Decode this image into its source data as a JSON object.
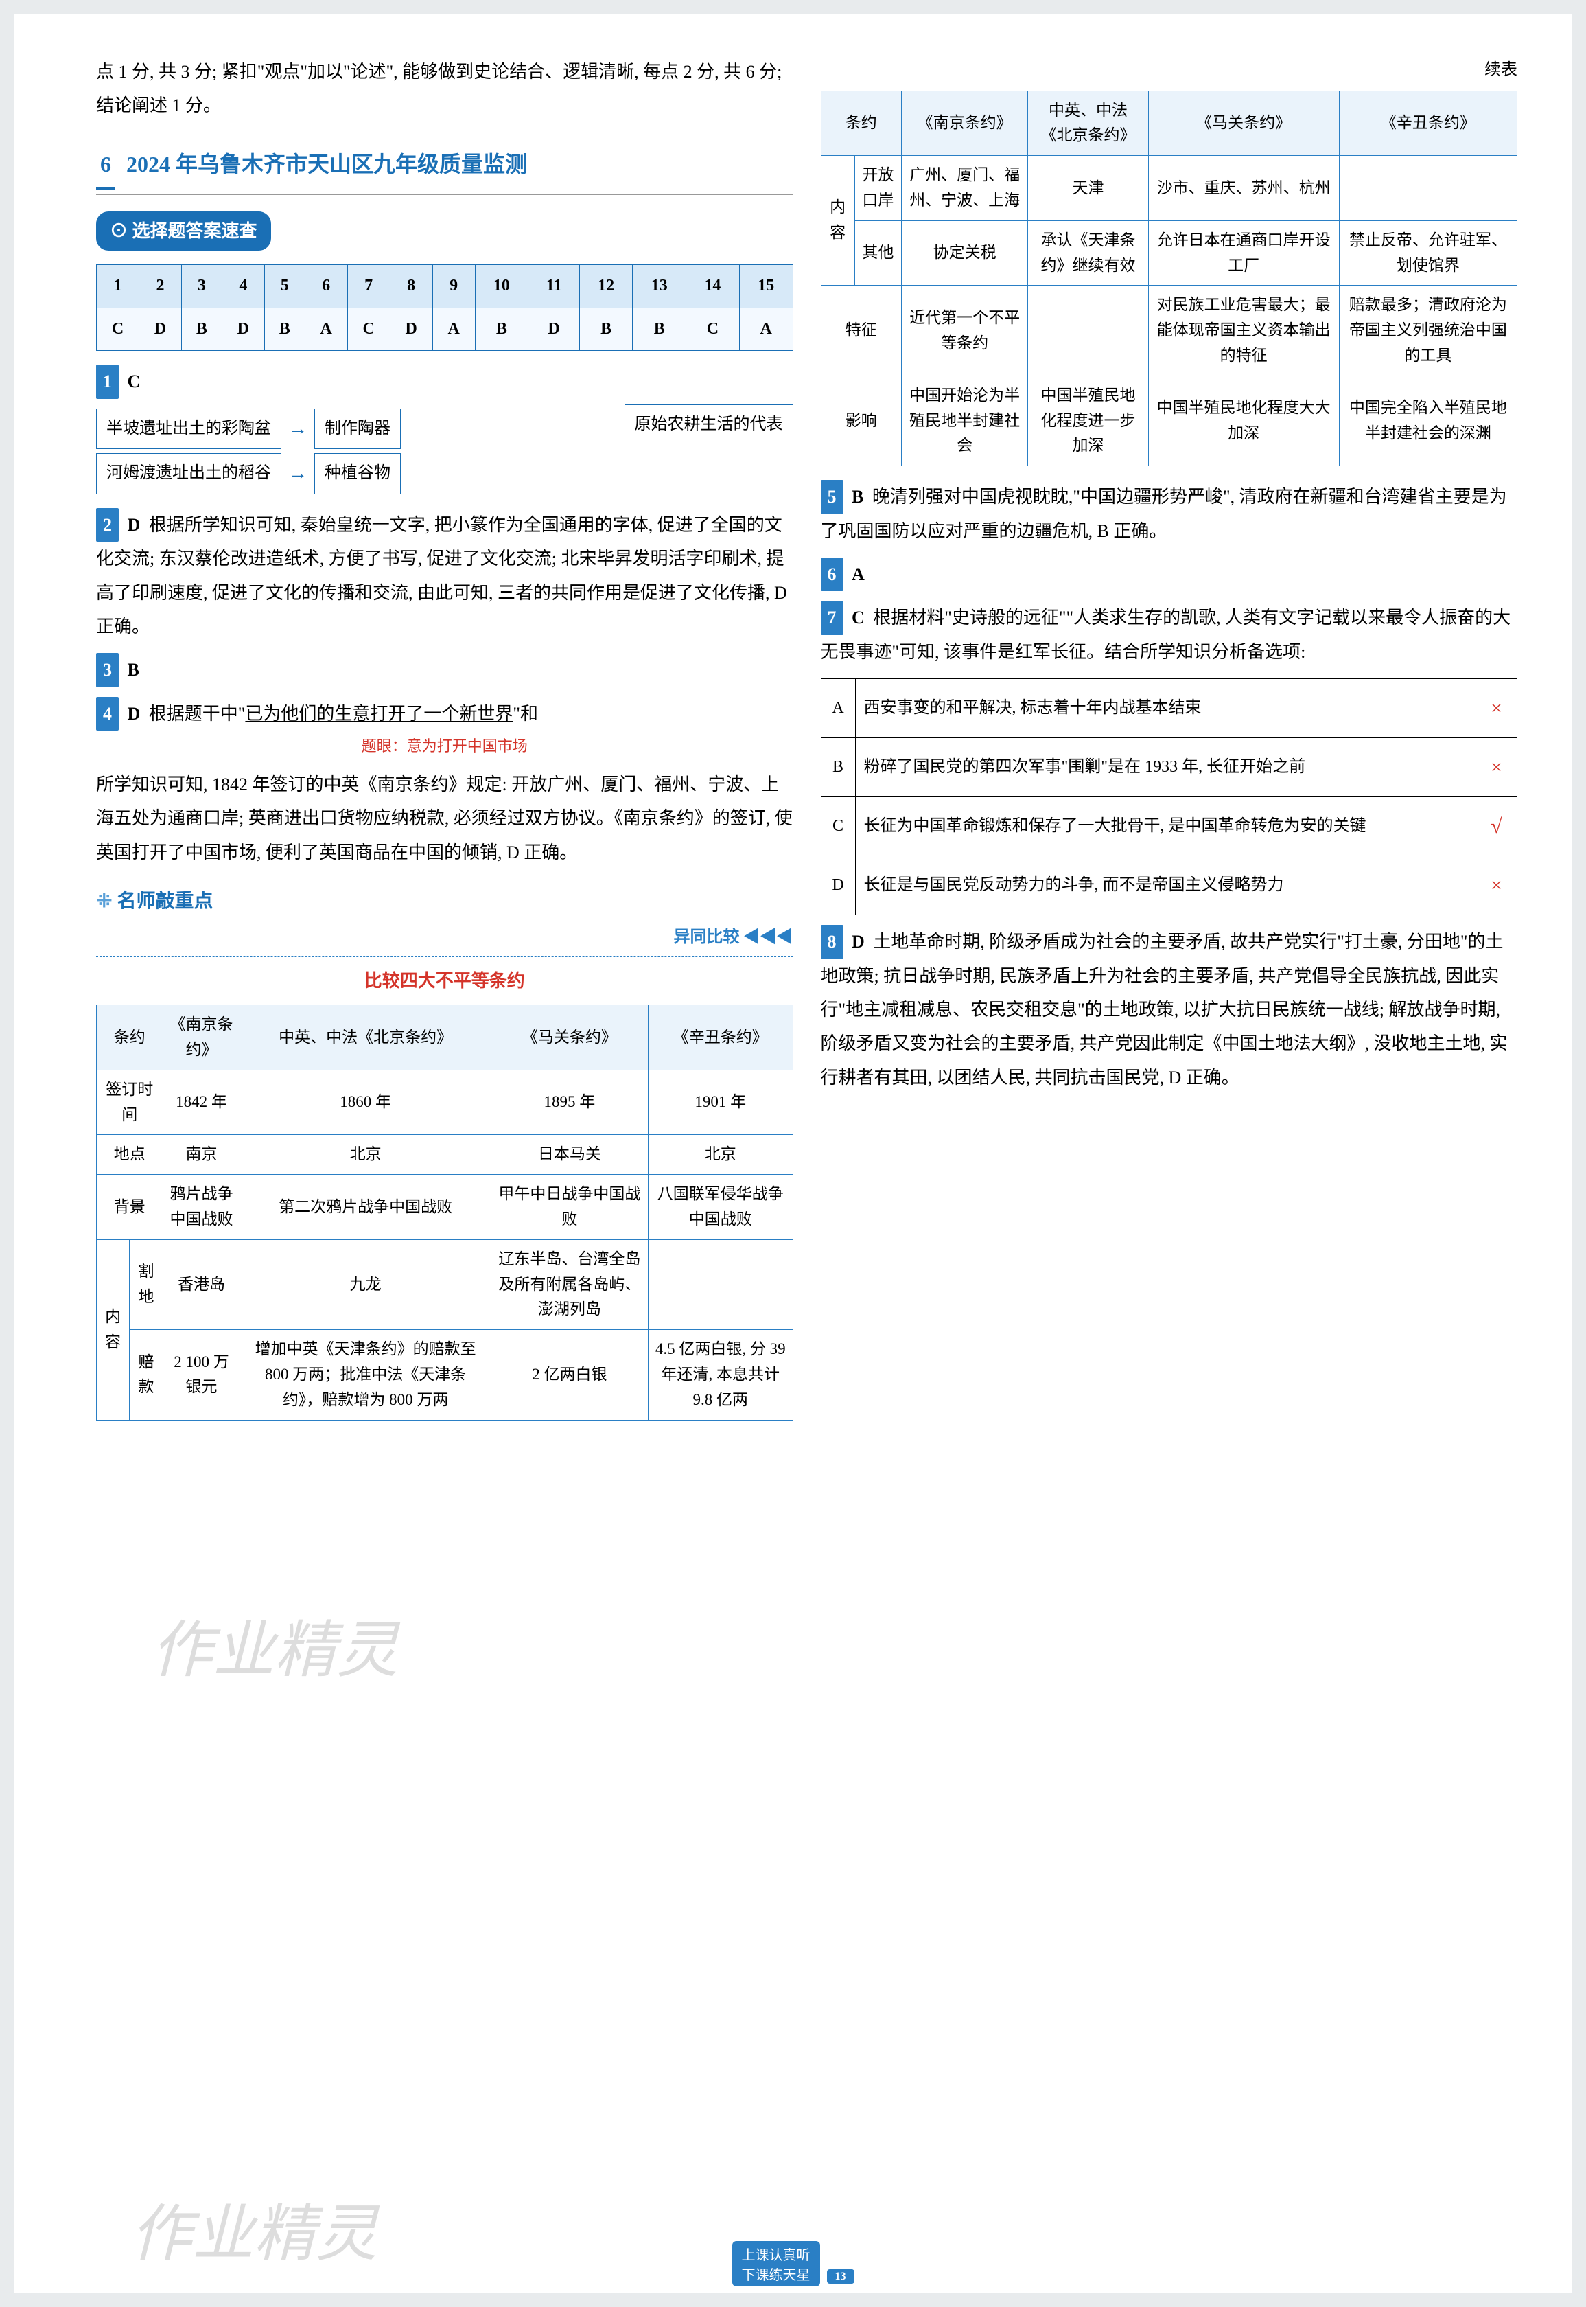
{
  "intro": "点 1 分, 共 3 分; 紧扣\"观点\"加以\"论述\", 能够做到史论结合、逻辑清晰, 每点 2 分, 共 6 分; 结论阐述 1 分。",
  "section": {
    "num": "6",
    "title": "2024 年乌鲁木齐市天山区九年级质量监测"
  },
  "subtitle": "选择题答案速查",
  "answerGrid": {
    "nums": [
      "1",
      "2",
      "3",
      "4",
      "5",
      "6",
      "7",
      "8",
      "9",
      "10",
      "11",
      "12",
      "13",
      "14",
      "15"
    ],
    "ans": [
      "C",
      "D",
      "B",
      "D",
      "B",
      "A",
      "C",
      "D",
      "A",
      "B",
      "D",
      "B",
      "B",
      "C",
      "A"
    ]
  },
  "q1": {
    "num": "1",
    "ans": "C",
    "d1a": "半坡遗址出土的彩陶盆",
    "d1b": "制作陶器",
    "d2a": "河姆渡遗址出土的稻谷",
    "d2b": "种植谷物",
    "side": "原始农耕生活的代表"
  },
  "q2": {
    "num": "2",
    "ans": "D",
    "text": "根据所学知识可知, 秦始皇统一文字, 把小篆作为全国通用的字体, 促进了全国的文化交流; 东汉蔡伦改进造纸术, 方便了书写, 促进了文化交流; 北宋毕昇发明活字印刷术, 提高了印刷速度, 促进了文化的传播和交流, 由此可知, 三者的共同作用是促进了文化传播, D 正确。"
  },
  "q3": {
    "num": "3",
    "ans": "B"
  },
  "q4": {
    "num": "4",
    "ans": "D",
    "lead": "根据题干中\"",
    "underline": "已为他们的生意打开了一个新世界",
    "tail": "\"和",
    "redNote": "题眼：意为打开中国市场",
    "body": "所学知识可知, 1842 年签订的中英《南京条约》规定: 开放广州、厦门、福州、宁波、上海五处为通商口岸; 英商进出口货物应纳税款, 必须经过双方协议。《南京条约》的签订, 使英国打开了中国市场, 便利了英国商品在中国的倾销, D 正确。"
  },
  "teacher": {
    "title": "名师敲重点",
    "tag": "异同比较 ◀◀◀",
    "header": "比较四大不平等条约"
  },
  "t1": {
    "headers": [
      "条约",
      "《南京条约》",
      "中英、中法《北京条约》",
      "《马关条约》",
      "《辛丑条约》"
    ],
    "rows": [
      [
        "签订时间",
        "1842 年",
        "1860 年",
        "1895 年",
        "1901 年"
      ],
      [
        "地点",
        "南京",
        "北京",
        "日本马关",
        "北京"
      ],
      [
        "背景",
        "鸦片战争中国战败",
        "第二次鸦片战争中国战败",
        "甲午中日战争中国战败",
        "八国联军侵华战争中国战败"
      ]
    ],
    "contentLabel": "内容",
    "cede": [
      "割地",
      "香港岛",
      "九龙",
      "辽东半岛、台湾全岛及所有附属各岛屿、澎湖列岛",
      ""
    ],
    "indem": [
      "赔款",
      "2 100 万银元",
      "增加中英《天津条约》的赔款至 800 万两；批准中法《天津条约》，赔款增为 800 万两",
      "2 亿两白银",
      "4.5 亿两白银, 分 39 年还清, 本息共计 9.8 亿两"
    ]
  },
  "contLabel": "续表",
  "t2": {
    "headers": [
      "条约",
      "《南京条约》",
      "中英、中法《北京条约》",
      "《马关条约》",
      "《辛丑条约》"
    ],
    "contentLabel": "内容",
    "port": [
      "开放口岸",
      "广州、厦门、福州、宁波、上海",
      "天津",
      "沙市、重庆、苏州、杭州",
      ""
    ],
    "other": [
      "其他",
      "协定关税",
      "承认《天津条约》继续有效",
      "允许日本在通商口岸开设工厂",
      "禁止反帝、允许驻军、划使馆界"
    ],
    "feat": [
      "特征",
      "近代第一个不平等条约",
      "",
      "对民族工业危害最大；最能体现帝国主义资本输出的特征",
      "赔款最多；清政府沦为帝国主义列强统治中国的工具"
    ],
    "impact": [
      "影响",
      "中国开始沦为半殖民地半封建社会",
      "中国半殖民地化程度进一步加深",
      "中国半殖民地化程度大大加深",
      "中国完全陷入半殖民地半封建社会的深渊"
    ]
  },
  "q5": {
    "num": "5",
    "ans": "B",
    "text": "晚清列强对中国虎视眈眈,\"中国边疆形势严峻\", 清政府在新疆和台湾建省主要是为了巩固国防以应对严重的边疆危机, B 正确。"
  },
  "q6": {
    "num": "6",
    "ans": "A"
  },
  "q7": {
    "num": "7",
    "ans": "C",
    "text": "根据材料\"史诗般的远征\"\"人类求生存的凯歌, 人类有文字记载以来最令人振奋的大无畏事迹\"可知, 该事件是红军长征。结合所学知识分析备选项:",
    "opts": [
      {
        "k": "A",
        "t": "西安事变的和平解决, 标志着十年内战基本结束",
        "m": "×"
      },
      {
        "k": "B",
        "t": "粉碎了国民党的第四次军事\"围剿\"是在 1933 年, 长征开始之前",
        "m": "×"
      },
      {
        "k": "C",
        "t": "长征为中国革命锻炼和保存了一大批骨干, 是中国革命转危为安的关键",
        "m": "√"
      },
      {
        "k": "D",
        "t": "长征是与国民党反动势力的斗争, 而不是帝国主义侵略势力",
        "m": "×"
      }
    ]
  },
  "q8": {
    "num": "8",
    "ans": "D",
    "text": "土地革命时期, 阶级矛盾成为社会的主要矛盾, 故共产党实行\"打土豪, 分田地\"的土地政策; 抗日战争时期, 民族矛盾上升为社会的主要矛盾, 共产党倡导全民族抗战, 因此实行\"地主减租减息、农民交租交息\"的土地政策, 以扩大抗日民族统一战线; 解放战争时期, 阶级矛盾又变为社会的主要矛盾, 共产党因此制定《中国土地法大纲》, 没收地主土地, 实行耕者有其田, 以团结人民, 共同抗击国民党, D 正确。"
  },
  "footer": {
    "line1": "上课认真听",
    "line2": "下课练天星",
    "pg": "13"
  },
  "watermark": "作业精灵"
}
